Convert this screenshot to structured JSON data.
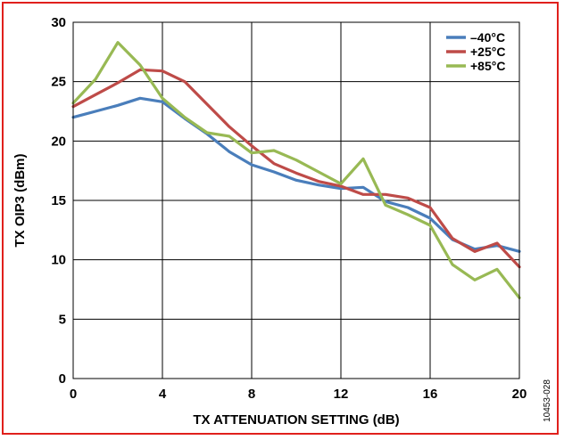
{
  "chart_data": {
    "type": "line",
    "title": "",
    "xlabel": "TX ATTENUATION SETTING (dB)",
    "ylabel": "TX OIP3 (dBm)",
    "xlim": [
      0,
      20
    ],
    "ylim": [
      0,
      30
    ],
    "xticks": [
      0,
      4,
      8,
      12,
      16,
      20
    ],
    "yticks": [
      0,
      5,
      10,
      15,
      20,
      25,
      30
    ],
    "grid": true,
    "legend_position": "top-right",
    "figure_id": "10453-028",
    "x": [
      0,
      1,
      2,
      3,
      4,
      5,
      6,
      7,
      8,
      9,
      10,
      11,
      12,
      13,
      14,
      15,
      16,
      17,
      18,
      19,
      20
    ],
    "series": [
      {
        "name": "–40°C",
        "color": "#4a7ebb",
        "values": [
          22.0,
          22.5,
          23.0,
          23.6,
          23.3,
          21.9,
          20.6,
          19.1,
          18.0,
          17.4,
          16.7,
          16.3,
          16.0,
          16.1,
          14.9,
          14.4,
          13.5,
          11.7,
          10.9,
          11.2,
          10.7
        ]
      },
      {
        "name": "+25°C",
        "color": "#be4b48",
        "values": [
          22.9,
          23.9,
          24.9,
          26.0,
          25.9,
          25.0,
          23.1,
          21.2,
          19.6,
          18.1,
          17.3,
          16.6,
          16.2,
          15.5,
          15.5,
          15.2,
          14.4,
          11.8,
          10.7,
          11.4,
          9.4
        ]
      },
      {
        "name": "+85°C",
        "color": "#98b954",
        "values": [
          23.2,
          25.2,
          28.3,
          26.4,
          23.6,
          22.0,
          20.7,
          20.4,
          19.0,
          19.2,
          18.4,
          17.4,
          16.4,
          18.5,
          14.6,
          13.8,
          12.9,
          9.6,
          8.3,
          9.2,
          6.8
        ]
      }
    ]
  }
}
